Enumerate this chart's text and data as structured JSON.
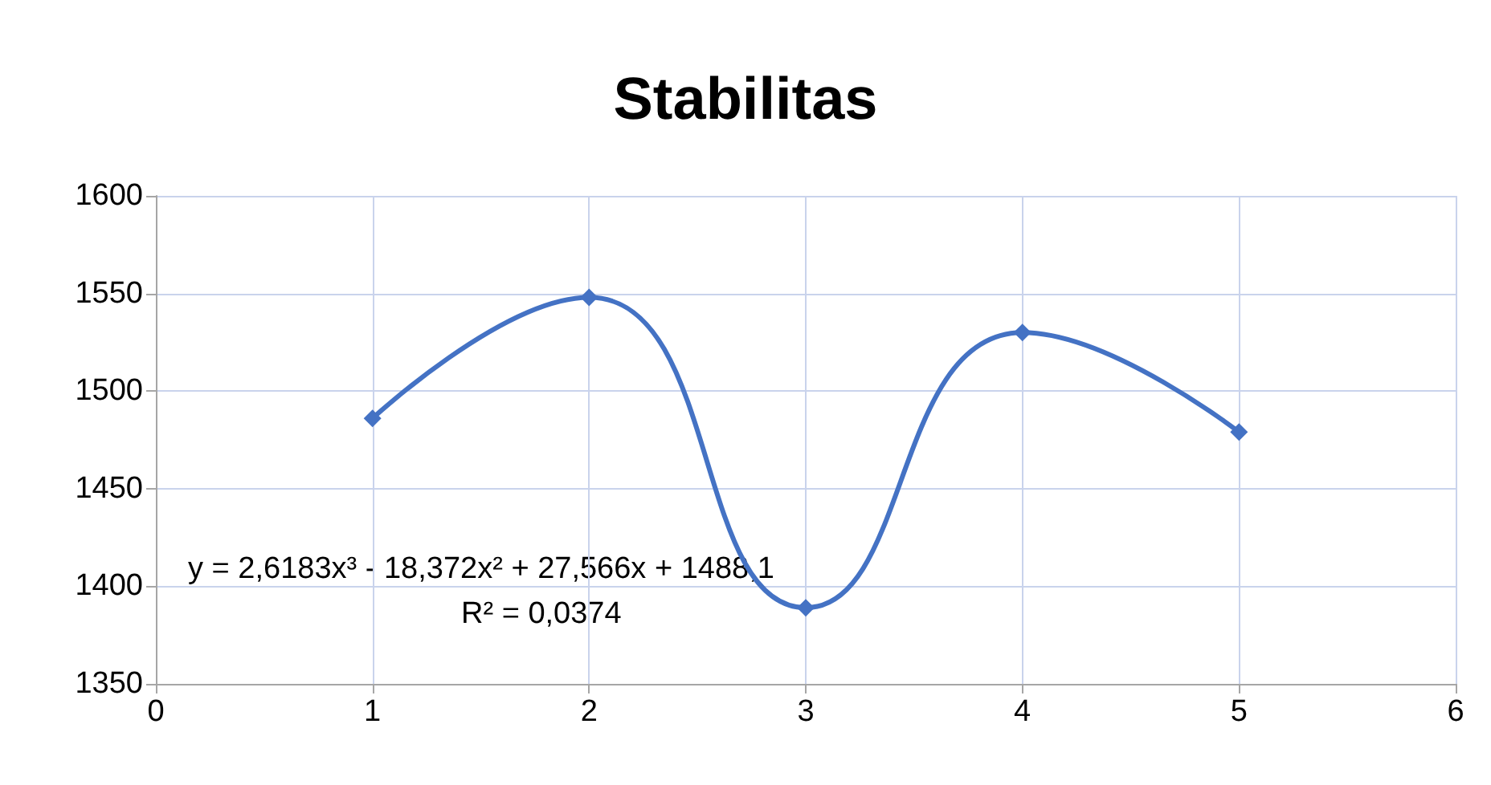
{
  "chart_data": {
    "type": "line",
    "title": "Stabilitas",
    "x": [
      1,
      2,
      3,
      4,
      5
    ],
    "series": [
      {
        "color": "#4472c4",
        "values": [
          1486,
          1548,
          1389,
          1530,
          1479
        ]
      }
    ],
    "xlim": [
      0,
      6
    ],
    "xticks": [
      0,
      1,
      2,
      3,
      4,
      5,
      6
    ],
    "ylim": [
      1350,
      1600
    ],
    "yticks": [
      1350,
      1400,
      1450,
      1500,
      1550,
      1600
    ],
    "grid": true,
    "marker": "diamond",
    "line_style": "solid",
    "annotations": [
      "y = 2,6183x³ - 18,372x² + 27,566x + 1488,1",
      "R² = 0,0374"
    ]
  }
}
